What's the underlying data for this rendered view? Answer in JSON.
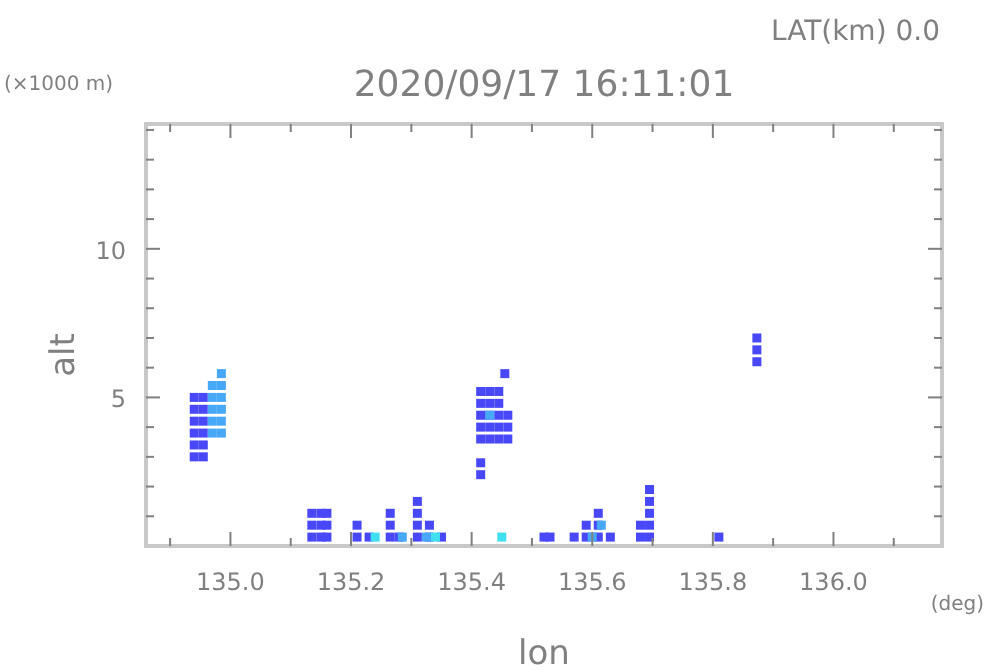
{
  "chart_data": {
    "type": "scatter",
    "title": "2020/09/17 16:11:01",
    "xlabel": "lon",
    "ylabel": "alt",
    "annotations": [
      "LAT(km) 0.0",
      "(×1000 m)",
      "(deg)"
    ],
    "marker": "square",
    "xlim": [
      134.86,
      136.18
    ],
    "ylim": [
      0,
      14.2
    ],
    "xticks": [
      {
        "value": 134.9,
        "label": null
      },
      "135.0",
      {
        "value": 135.1,
        "label": null
      },
      135.2,
      {
        "value": 135.3,
        "label": null
      },
      135.4,
      {
        "value": 135.5,
        "label": null
      },
      135.6,
      {
        "value": 135.7,
        "label": null
      },
      135.8,
      {
        "value": 135.9,
        "label": null
      },
      "136.0",
      {
        "value": 136.1,
        "label": null
      }
    ],
    "yticks": [
      {
        "value": 1,
        "label": null
      },
      {
        "value": 2,
        "label": null
      },
      {
        "value": 3,
        "label": null
      },
      {
        "value": 4,
        "label": null
      },
      5,
      {
        "value": 6,
        "label": null
      },
      {
        "value": 7,
        "label": null
      },
      {
        "value": 8,
        "label": null
      },
      {
        "value": 9,
        "label": null
      },
      10,
      {
        "value": 11,
        "label": null
      },
      {
        "value": 12,
        "label": null
      },
      {
        "value": 13,
        "label": null
      },
      {
        "value": 14,
        "label": null
      }
    ],
    "series": [
      {
        "color": "#4848f8",
        "x": [
          134.94,
          134.94,
          134.94,
          134.94,
          134.94,
          134.94,
          134.955,
          134.955,
          134.955,
          134.955,
          134.955,
          134.955,
          135.135,
          135.135,
          135.135,
          135.15,
          135.15,
          135.15,
          135.16,
          135.16,
          135.16,
          135.21,
          135.21,
          135.23,
          135.265,
          135.265,
          135.265,
          135.28,
          135.31,
          135.31,
          135.31,
          135.31,
          135.33,
          135.33,
          135.35,
          135.52,
          135.53,
          135.57,
          135.59,
          135.59,
          135.61,
          135.61,
          135.61,
          135.63,
          135.68,
          135.68,
          135.695,
          135.695,
          135.695,
          135.695,
          135.695,
          135.81,
          135.415,
          135.415,
          135.415,
          135.415,
          135.415,
          135.43,
          135.43,
          135.43,
          135.43,
          135.43,
          135.445,
          135.445,
          135.445,
          135.445,
          135.445,
          135.46,
          135.46,
          135.46,
          135.415,
          135.415,
          135.455,
          135.873,
          135.873,
          135.873
        ],
        "values": [
          3.0,
          3.4,
          3.8,
          4.2,
          4.6,
          5.0,
          3.0,
          3.4,
          3.8,
          4.2,
          4.6,
          5.0,
          0.3,
          0.7,
          1.1,
          0.3,
          0.7,
          1.1,
          0.3,
          0.7,
          1.1,
          0.3,
          0.7,
          0.3,
          0.3,
          0.7,
          1.1,
          0.3,
          0.3,
          0.7,
          1.1,
          1.5,
          0.3,
          0.7,
          0.3,
          0.3,
          0.3,
          0.3,
          0.3,
          0.7,
          0.3,
          0.7,
          1.1,
          0.3,
          0.3,
          0.7,
          0.3,
          0.7,
          1.1,
          1.5,
          1.9,
          0.3,
          3.6,
          4.0,
          4.4,
          4.8,
          5.2,
          3.6,
          4.0,
          4.4,
          4.8,
          5.2,
          3.6,
          4.0,
          4.4,
          4.8,
          5.2,
          3.6,
          4.0,
          4.4,
          2.4,
          2.8,
          5.8,
          6.2,
          6.6,
          7.0
        ]
      },
      {
        "color": "#48a8f8",
        "x": [
          134.97,
          134.97,
          134.97,
          134.97,
          134.97,
          134.985,
          134.985,
          134.985,
          134.985,
          134.985,
          134.985,
          135.43,
          135.285,
          135.325,
          135.6,
          135.615
        ],
        "values": [
          3.8,
          4.2,
          4.6,
          5.0,
          5.4,
          3.8,
          4.2,
          4.6,
          5.0,
          5.4,
          5.8,
          4.4,
          0.3,
          0.3,
          0.3,
          0.7
        ]
      },
      {
        "color": "#40e0f0",
        "x": [
          135.24,
          135.45,
          135.34
        ],
        "values": [
          0.3,
          0.3,
          0.3
        ]
      }
    ]
  }
}
